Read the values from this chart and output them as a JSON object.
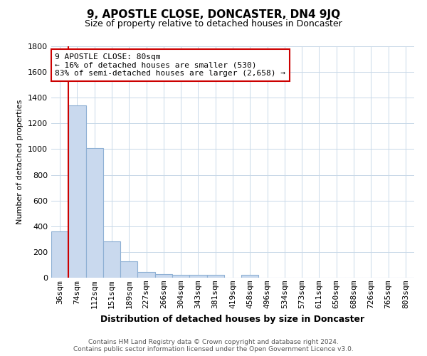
{
  "title": "9, APOSTLE CLOSE, DONCASTER, DN4 9JQ",
  "subtitle": "Size of property relative to detached houses in Doncaster",
  "xlabel": "Distribution of detached houses by size in Doncaster",
  "ylabel": "Number of detached properties",
  "bar_labels": [
    "36sqm",
    "74sqm",
    "112sqm",
    "151sqm",
    "189sqm",
    "227sqm",
    "266sqm",
    "304sqm",
    "343sqm",
    "381sqm",
    "419sqm",
    "458sqm",
    "496sqm",
    "534sqm",
    "573sqm",
    "611sqm",
    "650sqm",
    "688sqm",
    "726sqm",
    "765sqm",
    "803sqm"
  ],
  "bar_values": [
    360,
    1340,
    1010,
    285,
    130,
    45,
    30,
    20,
    20,
    20,
    0,
    20,
    0,
    0,
    0,
    0,
    0,
    0,
    0,
    0,
    0
  ],
  "bar_color": "#c9d9ee",
  "bar_edge_color": "#8eb0d4",
  "highlight_line_color": "#cc0000",
  "ylim": [
    0,
    1800
  ],
  "yticks": [
    0,
    200,
    400,
    600,
    800,
    1000,
    1200,
    1400,
    1600,
    1800
  ],
  "annotation_title": "9 APOSTLE CLOSE: 80sqm",
  "annotation_line1": "← 16% of detached houses are smaller (530)",
  "annotation_line2": "83% of semi-detached houses are larger (2,658) →",
  "footer1": "Contains HM Land Registry data © Crown copyright and database right 2024.",
  "footer2": "Contains public sector information licensed under the Open Government Licence v3.0.",
  "background_color": "#ffffff",
  "grid_color": "#c8d8e8",
  "title_fontsize": 11,
  "subtitle_fontsize": 9,
  "ylabel_fontsize": 8,
  "xlabel_fontsize": 9,
  "tick_fontsize": 8,
  "annot_fontsize": 8
}
